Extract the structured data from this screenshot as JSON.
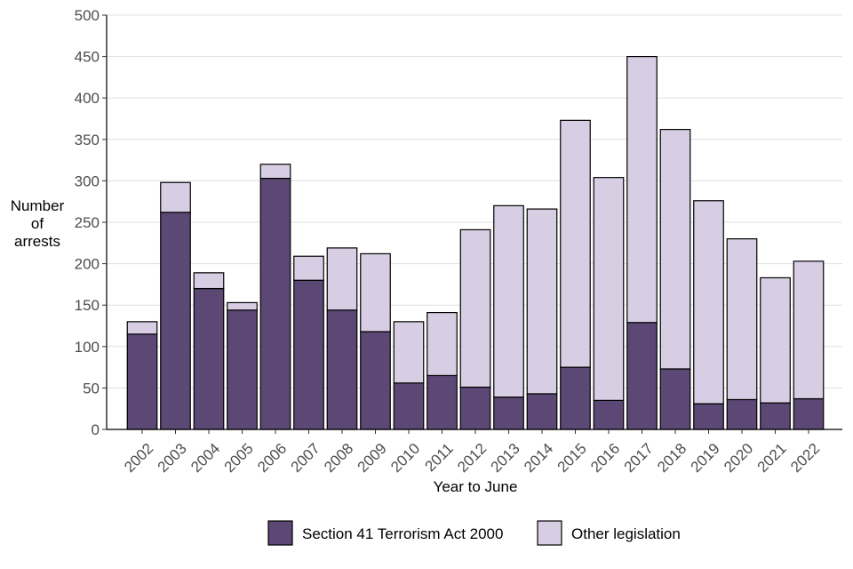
{
  "chart_data": {
    "type": "bar",
    "stacked": true,
    "title": "",
    "xlabel": "Year to June",
    "ylabel": [
      "Number",
      "of",
      "arrests"
    ],
    "ylim": [
      0,
      500
    ],
    "yticks": [
      0,
      50,
      100,
      150,
      200,
      250,
      300,
      350,
      400,
      450,
      500
    ],
    "grid": "horizontal",
    "legend_position": "bottom",
    "categories": [
      "2002",
      "2003",
      "2004",
      "2005",
      "2006",
      "2007",
      "2008",
      "2009",
      "2010",
      "2011",
      "2012",
      "2013",
      "2014",
      "2015",
      "2016",
      "2017",
      "2018",
      "2019",
      "2020",
      "2021",
      "2022"
    ],
    "series": [
      {
        "name": "Section 41 Terrorism Act 2000",
        "color": "#5c4875",
        "values": [
          115,
          262,
          170,
          144,
          303,
          180,
          144,
          118,
          56,
          65,
          51,
          39,
          43,
          75,
          35,
          129,
          73,
          31,
          36,
          32,
          37
        ]
      },
      {
        "name": "Other legislation",
        "color": "#d8cee3",
        "values": [
          15,
          36,
          19,
          9,
          17,
          29,
          75,
          94,
          74,
          76,
          190,
          231,
          223,
          298,
          269,
          321,
          289,
          245,
          194,
          151,
          166
        ]
      }
    ]
  }
}
